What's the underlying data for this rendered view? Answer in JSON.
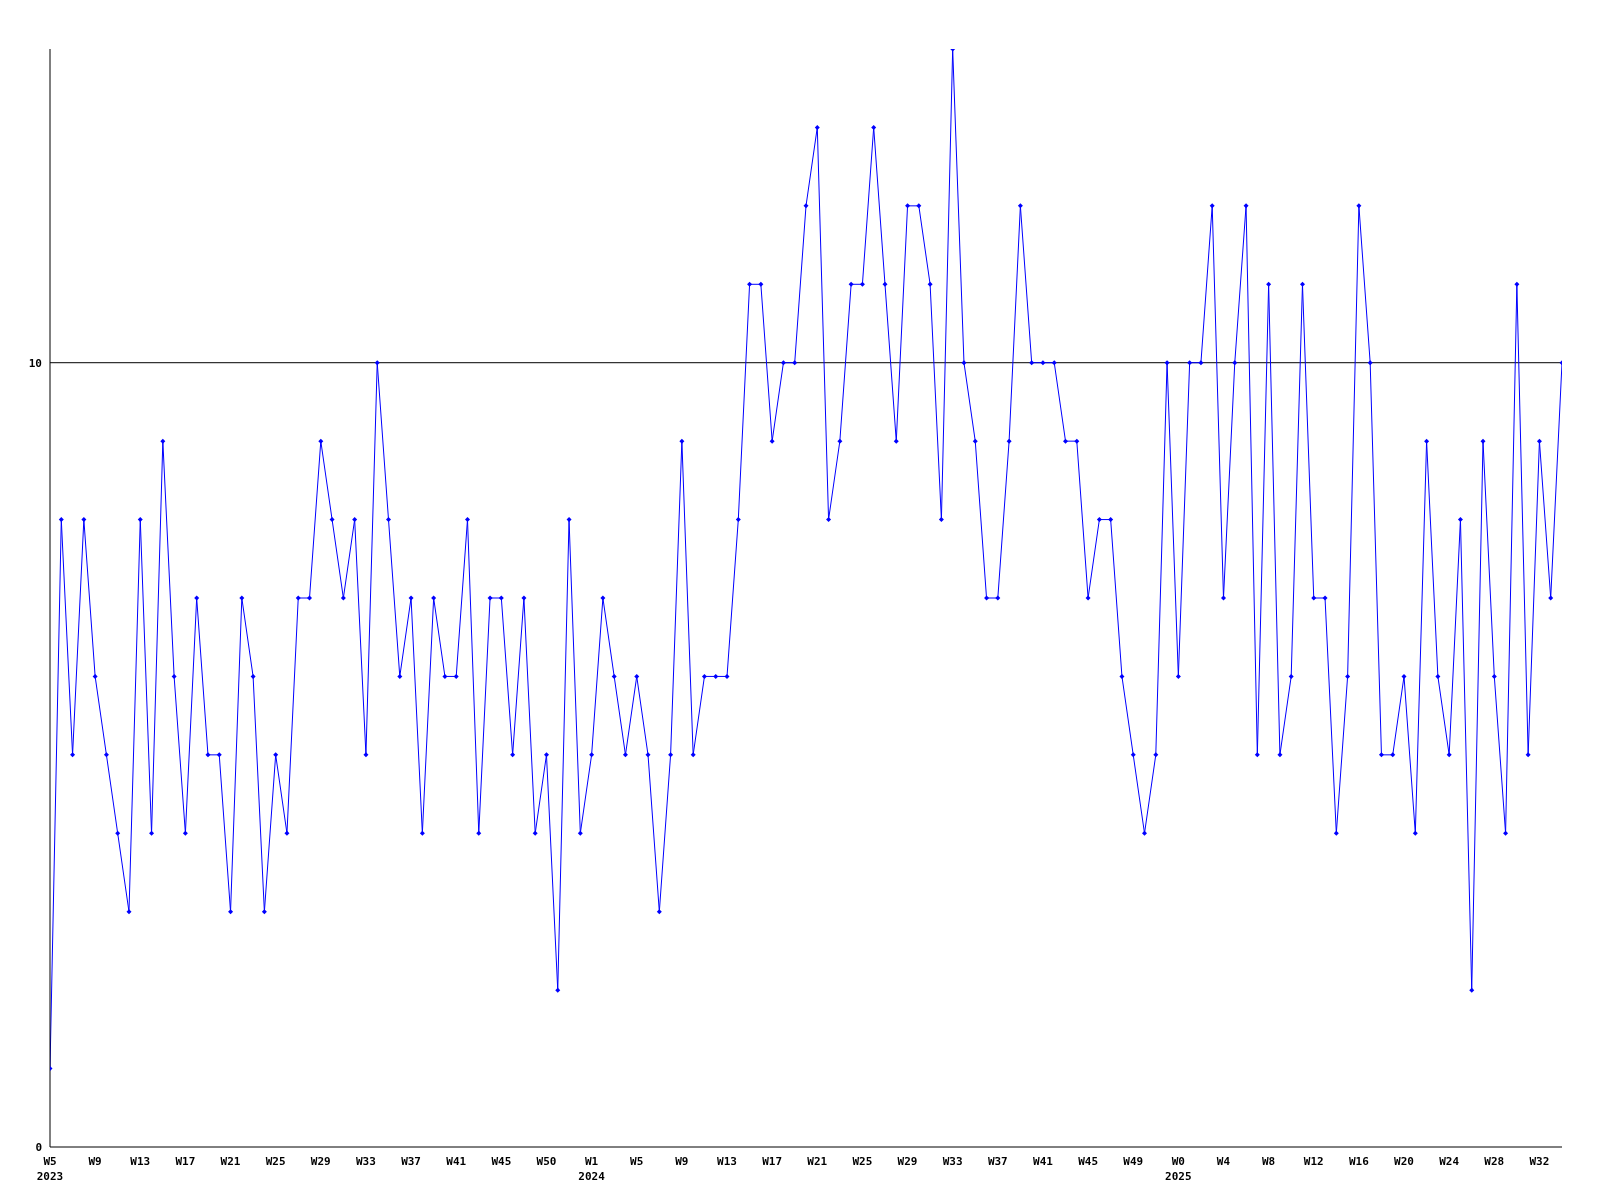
{
  "chart_data": {
    "type": "line",
    "categories": [
      "W5\n2023",
      null,
      null,
      null,
      "W9",
      null,
      null,
      null,
      "W13",
      null,
      null,
      null,
      "W17",
      null,
      null,
      null,
      "W21",
      null,
      null,
      null,
      "W25",
      null,
      null,
      null,
      "W29",
      null,
      null,
      null,
      "W33",
      null,
      null,
      null,
      "W37",
      null,
      null,
      null,
      "W41",
      null,
      null,
      null,
      "W45",
      null,
      null,
      null,
      "W50",
      null,
      null,
      null,
      "W1\n2024",
      null,
      null,
      null,
      "W5",
      null,
      null,
      null,
      "W9",
      null,
      null,
      null,
      "W13",
      null,
      null,
      null,
      "W17",
      null,
      null,
      null,
      "W21",
      null,
      null,
      null,
      "W25",
      null,
      null,
      null,
      "W29",
      null,
      null,
      null,
      "W33",
      null,
      null,
      null,
      "W37",
      null,
      null,
      null,
      "W41",
      null,
      null,
      null,
      "W45",
      null,
      null,
      null,
      "W49",
      null,
      null,
      null,
      "W0\n2025",
      null,
      null,
      null,
      "W4",
      null,
      null,
      null,
      "W8",
      null,
      null,
      null,
      "W12",
      null,
      null,
      null,
      "W16",
      null,
      null,
      null,
      "W20",
      null,
      null,
      null,
      "W24",
      null,
      null,
      null,
      "W28",
      null,
      null,
      null,
      "W32",
      null,
      null
    ],
    "series": [
      {
        "color": "#0000ff",
        "values": [
          1,
          8,
          5,
          8,
          6,
          5,
          4,
          3,
          8,
          4,
          9,
          6,
          4,
          7,
          5,
          5,
          3,
          7,
          6,
          3,
          5,
          4,
          7,
          7,
          9,
          8,
          7,
          8,
          5,
          10,
          8,
          6,
          7,
          4,
          7,
          6,
          6,
          8,
          4,
          7,
          7,
          5,
          7,
          4,
          5,
          2,
          8,
          4,
          5,
          7,
          6,
          5,
          6,
          5,
          3,
          5,
          9,
          5,
          6,
          6,
          6,
          8,
          11,
          11,
          9,
          10,
          10,
          12,
          13,
          8,
          9,
          11,
          11,
          13,
          11,
          9,
          12,
          12,
          11,
          8,
          14,
          10,
          9,
          7,
          7,
          9,
          12,
          10,
          10,
          10,
          9,
          9,
          7,
          8,
          8,
          6,
          5,
          4,
          5,
          10,
          6,
          10,
          10,
          12,
          7,
          10,
          12,
          5,
          11,
          5,
          6,
          11,
          7,
          7,
          4,
          6,
          12,
          10,
          5,
          5,
          6,
          4,
          9,
          6,
          5,
          8,
          2,
          9,
          6,
          4,
          11,
          5,
          9,
          7,
          10
        ]
      }
    ],
    "ylim": [
      0,
      14
    ],
    "yticks": [
      0,
      10
    ],
    "marker": "diamond",
    "ref_lines": [
      {
        "axis": "y",
        "value": 10,
        "color": "#000000"
      }
    ]
  }
}
